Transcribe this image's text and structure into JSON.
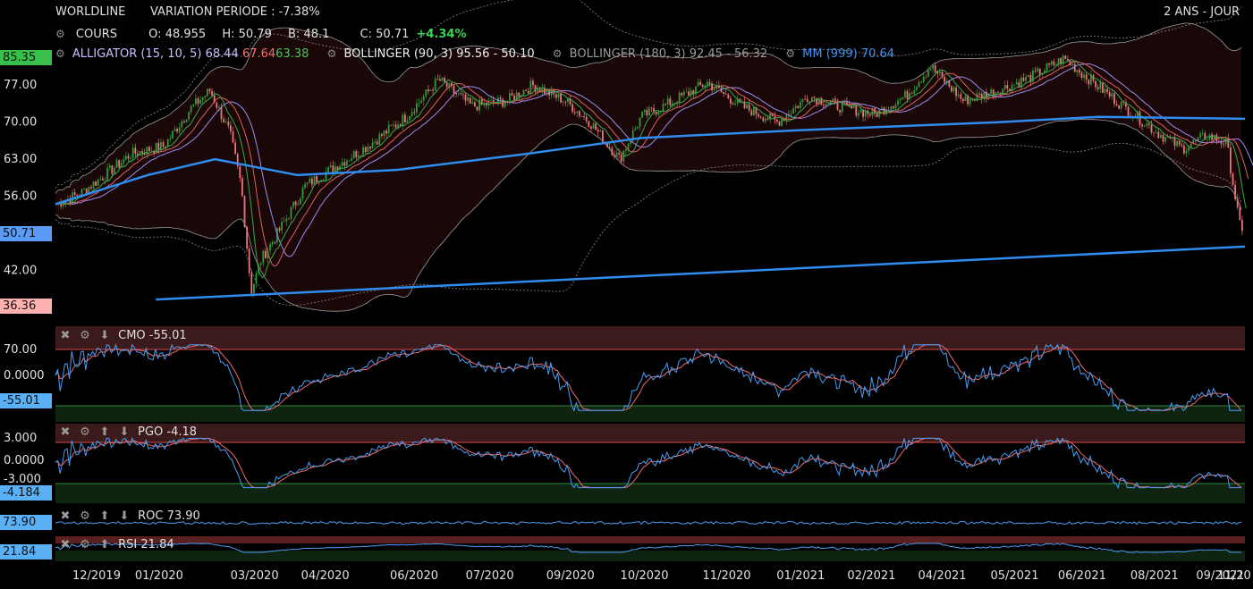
{
  "header": {
    "symbol": "WORLDLINE",
    "variation": "VARIATION PERIODE : -7.38%",
    "period": "2 ANS - JOUR",
    "cours_label": "COURS",
    "o_label": "O:",
    "o": "48.955",
    "h_label": "H:",
    "h": "50.79",
    "b_label": "B:",
    "b": "48.1",
    "c_label": "C:",
    "c": "50.71",
    "change": "+4.34%"
  },
  "indicators_line": {
    "alligator_label": "ALLIGATOR (15, 10, 5)",
    "alligator_v1": "68.44",
    "alligator_v2": "67.64",
    "alligator_v3": "63.38",
    "bollinger90_label": "BOLLINGER (90, 3)",
    "bollinger90_values": "95.56 - 50.10",
    "bollinger180_label": "BOLLINGER (180, 3)",
    "bollinger180_values": "92.45 - 56.32",
    "mm_label": "MM (999)",
    "mm_value": "70.64"
  },
  "badges": {
    "high": "85.35",
    "last": "50.71",
    "low": "36.36",
    "cmo": "-55.01",
    "pgo": "-4.184",
    "roc": "73.90",
    "rsi": "21.84"
  },
  "panels": {
    "cmo_title": "CMO -55.01",
    "pgo_title": "PGO -4.18",
    "roc_title": "ROC 73.90",
    "rsi_title": "RSI 21.84"
  },
  "colors": {
    "background": "#000000",
    "candle_up": "#2e9a3a",
    "candle_down": "#e8757a",
    "mm999": "#2f8cf0",
    "alligator_jaw": "#9a8cf5",
    "alligator_teeth": "#e06060",
    "alligator_lips": "#3aa84a",
    "positive_change": "#39d353",
    "badge_high": "#39c04a",
    "badge_last": "#5a9cf5",
    "badge_low": "#ffb0b0",
    "osc_main": "#4a9ef5",
    "osc_signal": "#f06a6a"
  },
  "chart_data": {
    "type": "candlestick",
    "title": "WORLDLINE",
    "y_ticks": [
      77.0,
      70.0,
      63.0,
      56.0,
      42.0
    ],
    "y_tick_labels": [
      "77.00",
      "70.00",
      "63.00",
      "56.00",
      "42.00"
    ],
    "ylim": [
      34,
      88
    ],
    "x_ticks": [
      "12/2019",
      "01/2020",
      "03/2020",
      "04/2020",
      "06/2020",
      "07/2020",
      "09/2020",
      "10/2020",
      "11/2020",
      "01/2021",
      "02/2021",
      "04/2021",
      "05/2021",
      "06/2021",
      "08/2021",
      "09/2021",
      "11/20"
    ],
    "grid": false,
    "price_path": [
      {
        "d": "2019-11-20",
        "v": 54.5
      },
      {
        "d": "2019-12-05",
        "v": 56.5
      },
      {
        "d": "2019-12-20",
        "v": 60.0
      },
      {
        "d": "2020-01-05",
        "v": 64.0
      },
      {
        "d": "2020-01-25",
        "v": 65.5
      },
      {
        "d": "2020-02-10",
        "v": 72.5
      },
      {
        "d": "2020-02-22",
        "v": 76.0
      },
      {
        "d": "2020-03-05",
        "v": 68.0
      },
      {
        "d": "2020-03-12",
        "v": 58.0
      },
      {
        "d": "2020-03-18",
        "v": 38.0
      },
      {
        "d": "2020-03-24",
        "v": 44.0
      },
      {
        "d": "2020-04-05",
        "v": 50.0
      },
      {
        "d": "2020-04-20",
        "v": 58.0
      },
      {
        "d": "2020-05-10",
        "v": 62.0
      },
      {
        "d": "2020-05-30",
        "v": 66.0
      },
      {
        "d": "2020-06-20",
        "v": 71.0
      },
      {
        "d": "2020-07-10",
        "v": 78.0
      },
      {
        "d": "2020-07-30",
        "v": 73.0
      },
      {
        "d": "2020-08-20",
        "v": 74.0
      },
      {
        "d": "2020-09-05",
        "v": 77.0
      },
      {
        "d": "2020-09-25",
        "v": 74.0
      },
      {
        "d": "2020-10-10",
        "v": 70.0
      },
      {
        "d": "2020-10-28",
        "v": 63.0
      },
      {
        "d": "2020-11-10",
        "v": 71.0
      },
      {
        "d": "2020-11-30",
        "v": 74.0
      },
      {
        "d": "2020-12-20",
        "v": 77.5
      },
      {
        "d": "2021-01-10",
        "v": 73.0
      },
      {
        "d": "2021-02-01",
        "v": 70.0
      },
      {
        "d": "2021-02-20",
        "v": 75.0
      },
      {
        "d": "2021-03-10",
        "v": 73.0
      },
      {
        "d": "2021-04-01",
        "v": 71.5
      },
      {
        "d": "2021-04-20",
        "v": 75.0
      },
      {
        "d": "2021-05-05",
        "v": 80.5
      },
      {
        "d": "2021-05-25",
        "v": 74.0
      },
      {
        "d": "2021-06-15",
        "v": 76.0
      },
      {
        "d": "2021-07-05",
        "v": 78.5
      },
      {
        "d": "2021-07-25",
        "v": 82.0
      },
      {
        "d": "2021-08-10",
        "v": 78.0
      },
      {
        "d": "2021-08-30",
        "v": 73.0
      },
      {
        "d": "2021-09-20",
        "v": 68.0
      },
      {
        "d": "2021-10-05",
        "v": 65.0
      },
      {
        "d": "2021-10-20",
        "v": 67.5
      },
      {
        "d": "2021-11-01",
        "v": 66.0
      },
      {
        "d": "2021-11-05",
        "v": 58.0
      },
      {
        "d": "2021-11-10",
        "v": 48.5
      },
      {
        "d": "2021-11-12",
        "v": 50.71
      }
    ],
    "mm999_path": [
      {
        "d": "2019-11-20",
        "v": 54.5
      },
      {
        "d": "2020-01-15",
        "v": 60.0
      },
      {
        "d": "2020-02-25",
        "v": 63.0
      },
      {
        "d": "2020-04-15",
        "v": 60.0
      },
      {
        "d": "2020-06-15",
        "v": 61.0
      },
      {
        "d": "2020-09-01",
        "v": 64.0
      },
      {
        "d": "2020-11-10",
        "v": 67.0
      },
      {
        "d": "2021-02-15",
        "v": 68.5
      },
      {
        "d": "2021-06-15",
        "v": 70.0
      },
      {
        "d": "2021-08-15",
        "v": 71.0
      },
      {
        "d": "2021-11-12",
        "v": 70.64
      }
    ],
    "trendline": {
      "from": {
        "d": "2020-01-20",
        "v": 36.5
      },
      "to": {
        "d": "2021-11-12",
        "v": 46.5
      }
    },
    "oscillators": [
      {
        "name": "CMO",
        "value": -55.01,
        "ticks": [
          "70.00",
          "0.0000"
        ]
      },
      {
        "name": "PGO",
        "value": -4.184,
        "ticks": [
          "3.000",
          "0.0000",
          "-3.000"
        ]
      },
      {
        "name": "ROC",
        "value": 73.9
      },
      {
        "name": "RSI",
        "value": 21.84
      }
    ]
  }
}
